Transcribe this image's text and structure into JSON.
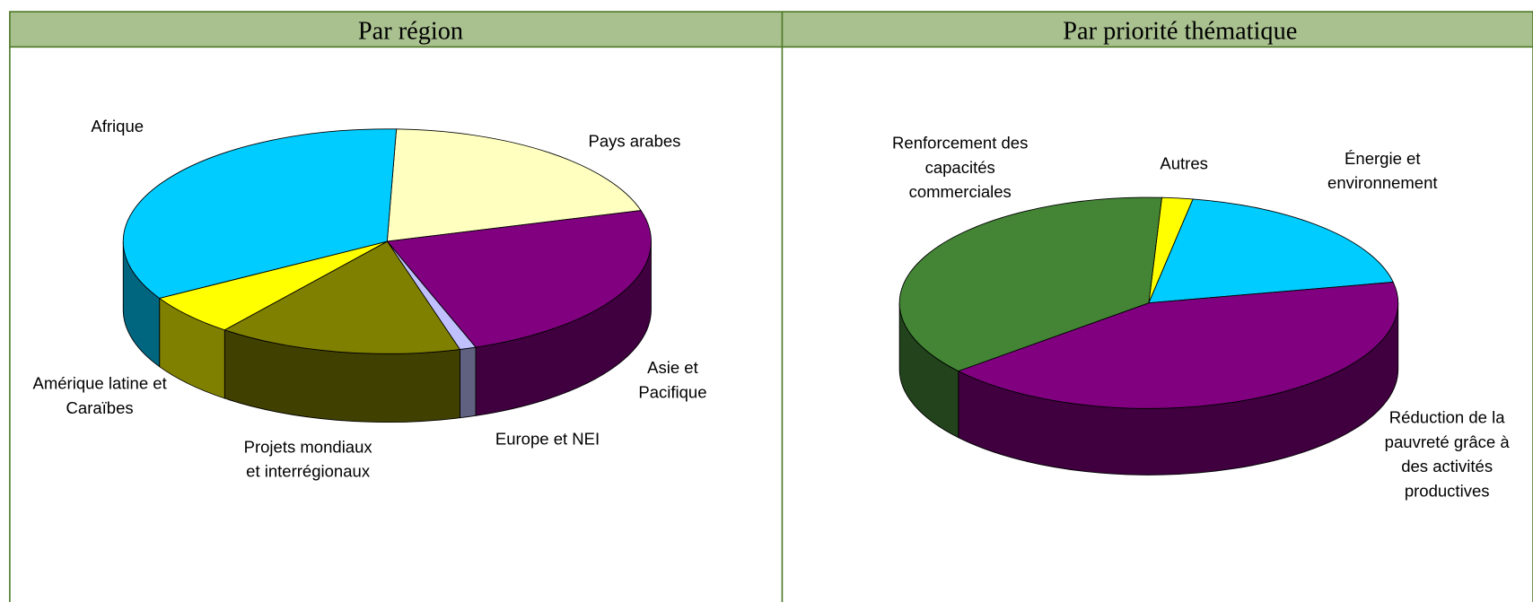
{
  "chart_data": [
    {
      "type": "pie",
      "title": "Par région",
      "categories": [
        "Pays arabes",
        "Asie et Pacifique",
        "Europe et NEI",
        "Projets mondiaux et interrégionaux",
        "Amérique latine et Caraïbes",
        "Afrique"
      ],
      "values": [
        20,
        24,
        1,
        15,
        6,
        34
      ],
      "colors": [
        "#ffffc0",
        "#800080",
        "#c0c0ff",
        "#808000",
        "#ffff00",
        "#00ccff"
      ]
    },
    {
      "type": "pie",
      "title": "Par priorité thématique",
      "categories": [
        "Autres",
        "Énergie et environnement",
        "Réduction de la pauvreté grâce à des activités productives",
        "Renforcement des capacités commerciales"
      ],
      "values": [
        2,
        19,
        42,
        37
      ],
      "colors": [
        "#ffff00",
        "#00ccff",
        "#800080",
        "#438535"
      ]
    }
  ]
}
